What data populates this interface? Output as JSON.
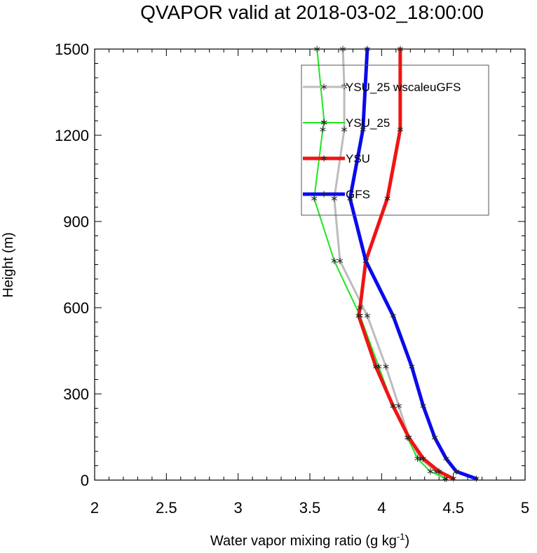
{
  "chart_data": {
    "type": "line",
    "title": "QVAPOR valid at 2018-03-02_18:00:00",
    "xlabel": "Water vapor mixing ratio (g kg",
    "xlabel_sup": "-1",
    "xlabel_tail": ")",
    "ylabel": "Height (m)",
    "xlim": [
      2,
      5
    ],
    "ylim": [
      0,
      1500
    ],
    "xticks": [
      2,
      2.5,
      3,
      3.5,
      4,
      4.5,
      5
    ],
    "xtick_labels": [
      "2",
      "2.5",
      "3",
      "3.5",
      "4",
      "4.5",
      "5"
    ],
    "yticks": [
      0,
      300,
      600,
      900,
      1200,
      1500
    ],
    "ytick_labels": [
      "0",
      "300",
      "600",
      "900",
      "1200",
      "1500"
    ],
    "grid": false,
    "legend_position": "upper-right",
    "series": [
      {
        "name": "YSU_25 wscaleuGFS",
        "color": "#bcbcbc",
        "line_width": 3,
        "marker": "asterisk",
        "points": [
          [
            4.44,
            5
          ],
          [
            4.38,
            30
          ],
          [
            4.27,
            75
          ],
          [
            4.19,
            148
          ],
          [
            4.12,
            258
          ],
          [
            4.03,
            395
          ],
          [
            3.9,
            572
          ],
          [
            3.71,
            763
          ],
          [
            3.67,
            980
          ],
          [
            3.74,
            1220
          ],
          [
            3.74,
            1370
          ],
          [
            3.73,
            1500
          ]
        ]
      },
      {
        "name": "YSU_25",
        "color": "#1ee61e",
        "line_width": 2,
        "marker": "asterisk",
        "points": [
          [
            4.45,
            5
          ],
          [
            4.34,
            30
          ],
          [
            4.25,
            75
          ],
          [
            4.18,
            148
          ],
          [
            4.08,
            258
          ],
          [
            3.98,
            395
          ],
          [
            3.85,
            572
          ],
          [
            3.67,
            763
          ],
          [
            3.53,
            980
          ],
          [
            3.59,
            1220
          ],
          [
            3.6,
            1245
          ],
          [
            3.55,
            1500
          ]
        ]
      },
      {
        "name": "YSU",
        "color": "#f01414",
        "line_width": 5,
        "marker": "asterisk",
        "points": [
          [
            4.5,
            5
          ],
          [
            4.4,
            30
          ],
          [
            4.29,
            75
          ],
          [
            4.19,
            148
          ],
          [
            4.08,
            258
          ],
          [
            3.96,
            395
          ],
          [
            3.84,
            572
          ],
          [
            3.85,
            600
          ],
          [
            3.89,
            763
          ],
          [
            4.04,
            980
          ],
          [
            4.13,
            1220
          ],
          [
            4.13,
            1500
          ]
        ]
      },
      {
        "name": "GFS",
        "color": "#0a0aee",
        "line_width": 5,
        "marker": "asterisk",
        "points": [
          [
            4.66,
            5
          ],
          [
            4.52,
            30
          ],
          [
            4.45,
            75
          ],
          [
            4.37,
            148
          ],
          [
            4.29,
            258
          ],
          [
            4.21,
            395
          ],
          [
            4.08,
            572
          ],
          [
            3.89,
            763
          ],
          [
            3.78,
            980
          ],
          [
            3.87,
            1220
          ],
          [
            3.9,
            1500
          ]
        ]
      }
    ]
  }
}
